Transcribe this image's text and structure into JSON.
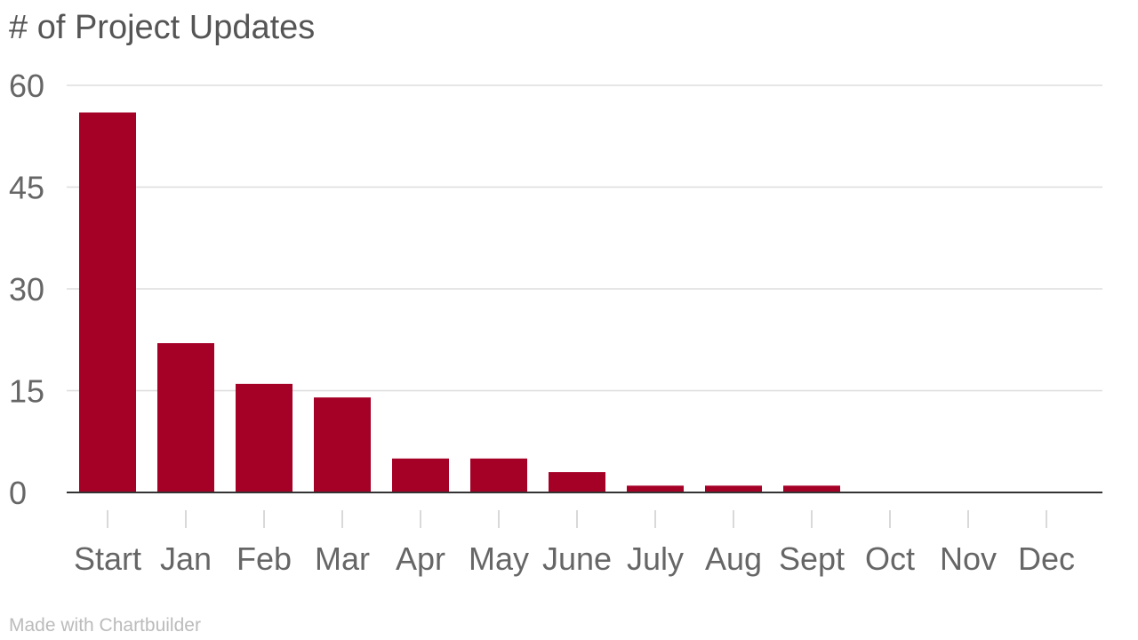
{
  "chart_data": {
    "type": "bar",
    "title": "# of Project Updates",
    "xlabel": "",
    "ylabel": "",
    "categories": [
      "Start",
      "Jan",
      "Feb",
      "Mar",
      "Apr",
      "May",
      "June",
      "July",
      "Aug",
      "Sept",
      "Oct",
      "Nov",
      "Dec"
    ],
    "values": [
      56,
      22,
      16,
      14,
      5,
      5,
      3,
      1,
      1,
      1,
      0,
      0,
      0
    ],
    "ylim": [
      0,
      60
    ],
    "yticks": [
      "0",
      "15",
      "30",
      "45",
      "60"
    ],
    "grid": true,
    "legend": "none",
    "bar_color": "#a50026",
    "grid_color": "#dddddd",
    "axis_color": "#333333"
  },
  "footer": {
    "credit": "Made with Chartbuilder"
  }
}
